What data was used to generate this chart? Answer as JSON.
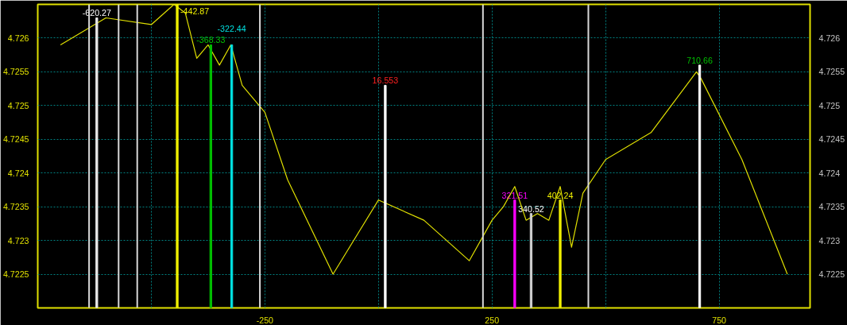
{
  "chart_data": {
    "type": "line",
    "xlim": [
      -750,
      950
    ],
    "xticks": [
      {
        "value": -500,
        "label": null
      },
      -250,
      {
        "value": 0,
        "label": null
      },
      250,
      {
        "value": 500,
        "label": null
      },
      750
    ],
    "ylim": [
      4.722,
      4.7265
    ],
    "yticks": [
      4.7225,
      4.723,
      4.7235,
      4.724,
      4.7245,
      4.725,
      4.7255,
      4.726
    ],
    "y2lim": [
      4.722,
      4.7265
    ],
    "y2ticks": [
      4.7225,
      4.723,
      4.7235,
      4.724,
      4.7245,
      4.725,
      4.7255,
      4.726
    ],
    "grid": true,
    "series": [
      {
        "color": "#e0e000",
        "x": [
          -700,
          -600,
          -500,
          -450,
          -425,
          -400,
          -375,
          -350,
          -325,
          -300,
          -250,
          -200,
          -100,
          0,
          100,
          200,
          250,
          275,
          300,
          325,
          350,
          375,
          400,
          425,
          450,
          500,
          600,
          700,
          710,
          800,
          900
        ],
        "values": [
          4.7259,
          4.7263,
          4.7262,
          4.7265,
          4.72637,
          4.7257,
          4.7259,
          4.7256,
          4.7259,
          4.7253,
          4.7249,
          4.7239,
          4.7225,
          4.7236,
          4.7233,
          4.7227,
          4.7233,
          4.7235,
          4.7238,
          4.7233,
          4.7234,
          4.7233,
          4.7238,
          4.7229,
          4.7237,
          4.7242,
          4.7246,
          4.7255,
          4.7254,
          4.7242,
          4.7225
        ]
      },
      {
        "type": "bar",
        "x": [
          -620,
          -443,
          -369,
          -323,
          15,
          300,
          336,
          400,
          707
        ],
        "base": [
          4.722,
          4.722,
          4.722,
          4.722,
          4.722,
          4.722,
          4.722,
          4.722,
          4.722
        ],
        "values": [
          0.0043,
          0.0045,
          0.0039,
          0.0039,
          0.0033,
          0.0016,
          0.0014,
          0.0016,
          0.0036
        ],
        "colors": [
          "#e8e8e8",
          "#f0f000",
          "#00c000",
          "#00e0e0",
          "#ffffff",
          "#ff00ff",
          "#d0d0d0",
          "#f0f000",
          "#ffffff"
        ]
      }
    ],
    "annotations": [
      "-620.27",
      "-442.87",
      "-368.33",
      "-322.44",
      "16.553",
      "321.51",
      "340.52",
      "402.24",
      "710.66"
    ],
    "ref_lines": [
      {
        "axis": "x",
        "value": -637,
        "color": "#d8d8d8"
      },
      {
        "axis": "x",
        "value": -572,
        "color": "#d8d8d8"
      },
      {
        "axis": "x",
        "value": -531,
        "color": "#d8d8d8"
      },
      {
        "axis": "x",
        "value": -261,
        "color": "#d8d8d8"
      },
      {
        "axis": "x",
        "value": 230,
        "color": "#d8d8d8"
      },
      {
        "axis": "x",
        "value": 462,
        "color": "#d8d8d8"
      }
    ]
  }
}
